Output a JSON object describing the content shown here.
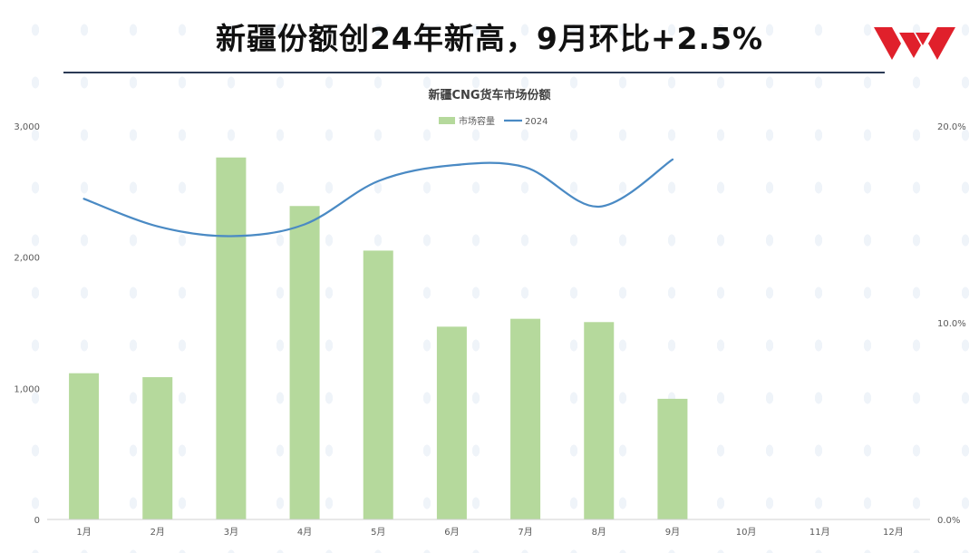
{
  "page": {
    "headline": "新疆份额创24年新高，9月环比+2.5%"
  },
  "colors": {
    "bar": "#b5d99c",
    "line": "#4a8ac4",
    "rule": "#2b3a55",
    "logo": "#e0202b"
  },
  "logo": {
    "icon": "wuling-logo-icon"
  },
  "chart_data": {
    "type": "bar",
    "title": "新疆CNG货车市场份额",
    "categories": [
      "1月",
      "2月",
      "3月",
      "4月",
      "5月",
      "6月",
      "7月",
      "8月",
      "9月",
      "10月",
      "11月",
      "12月"
    ],
    "series": [
      {
        "name": "市场容量",
        "type": "bar",
        "axis": "left",
        "values": [
          1115,
          1085,
          2760,
          2390,
          2050,
          1470,
          1530,
          1505,
          920,
          null,
          null,
          null
        ]
      },
      {
        "name": "2024",
        "type": "line",
        "axis": "right",
        "values": [
          16.3,
          14.9,
          14.4,
          15.0,
          17.2,
          18.0,
          17.9,
          15.9,
          18.3,
          null,
          null,
          null
        ]
      }
    ],
    "y_left": {
      "min": 0,
      "max": 3000,
      "ticks": [
        "0",
        "1,000",
        "2,000",
        "3,000"
      ],
      "tick_values": [
        0,
        1000,
        2000,
        3000
      ]
    },
    "y_right": {
      "min": 0,
      "max": 20,
      "ticks": [
        "0.0%",
        "10.0%",
        "20.0%"
      ],
      "tick_values": [
        0,
        10,
        20
      ]
    },
    "legend": "top-center",
    "grid": false
  }
}
